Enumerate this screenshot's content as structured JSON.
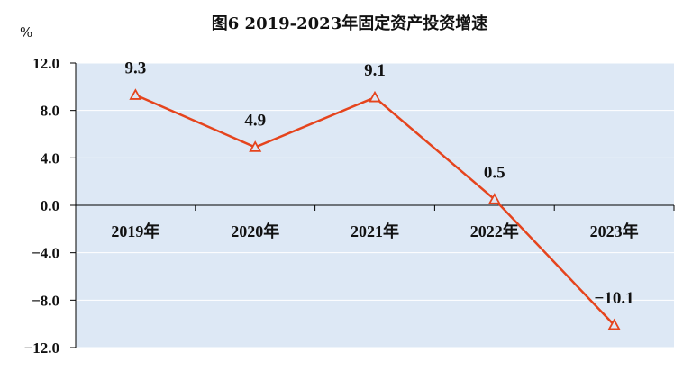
{
  "chart_data": {
    "type": "line",
    "title": "图6   2019-2023年固定资产投资增速",
    "unit": "%",
    "categories": [
      "2019年",
      "2020年",
      "2021年",
      "2022年",
      "2023年"
    ],
    "series": [
      {
        "values": [
          9.3,
          4.9,
          9.1,
          0.5,
          -10.1
        ]
      }
    ],
    "data_labels": [
      "9.3",
      "4.9",
      "9.1",
      "0.5",
      "−10.1"
    ],
    "ylim": [
      -12.0,
      12.0
    ],
    "yticks": [
      "12.0",
      "8.0",
      "4.0",
      "0.0",
      "−4.0",
      "−8.0",
      "−12.0"
    ],
    "marker": "triangle",
    "colors": {
      "line": "#e5441d",
      "plot_bg": "#dde8f5",
      "gridline": "#ffffff"
    }
  }
}
